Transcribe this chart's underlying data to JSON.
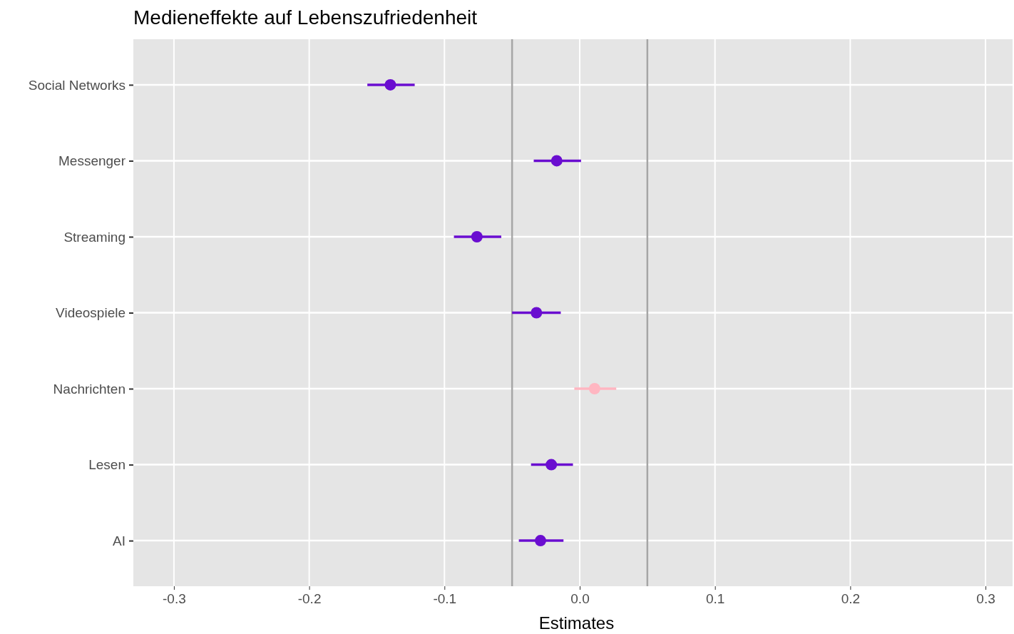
{
  "chart_data": {
    "type": "scatter",
    "orientation": "horizontal",
    "title": "Medieneffekte auf Lebenszufriedenheit",
    "xlabel": "Estimates",
    "categories": [
      "Social Networks",
      "Messenger",
      "Streaming",
      "Videospiele",
      "Nachrichten",
      "Lesen",
      "AI"
    ],
    "values": [
      -0.14,
      -0.017,
      -0.076,
      -0.032,
      0.011,
      -0.021,
      -0.029
    ],
    "errors": [
      [
        -0.157,
        -0.122
      ],
      [
        -0.034,
        0.001
      ],
      [
        -0.093,
        -0.058
      ],
      [
        -0.05,
        -0.014
      ],
      [
        -0.004,
        0.027
      ],
      [
        -0.036,
        -0.005
      ],
      [
        -0.045,
        -0.012
      ]
    ],
    "colors": [
      "#6a0dd0",
      "#6a0dd0",
      "#6a0dd0",
      "#6a0dd0",
      "#ffb6c1",
      "#6a0dd0",
      "#6a0dd0"
    ],
    "xlim": [
      -0.33,
      0.32
    ],
    "xticks": [
      {
        "value": -0.3,
        "label": "-0.3"
      },
      {
        "value": -0.2,
        "label": "-0.2"
      },
      {
        "value": -0.1,
        "label": "-0.1"
      },
      {
        "value": 0,
        "label": "0.0"
      },
      {
        "value": 0.1,
        "label": "0.1"
      },
      {
        "value": 0.2,
        "label": "0.2"
      },
      {
        "value": 0.3,
        "label": "0.3"
      }
    ],
    "ref_lines": [
      {
        "axis": "x",
        "value": -0.05,
        "color": "#a6a6a6"
      },
      {
        "axis": "x",
        "value": 0.05,
        "color": "#a6a6a6"
      }
    ],
    "grid": true,
    "marker": "circle"
  }
}
